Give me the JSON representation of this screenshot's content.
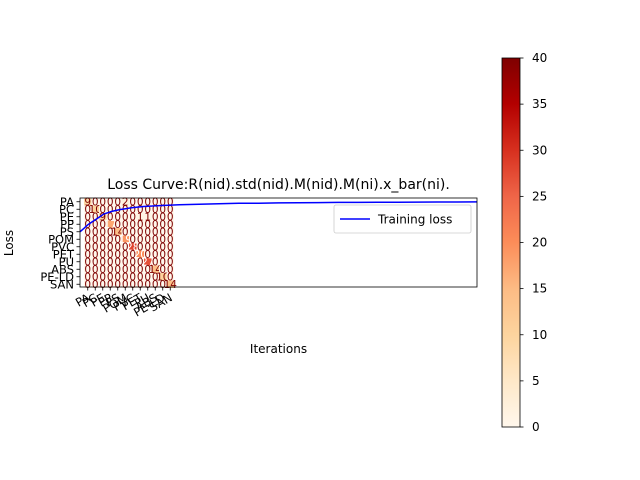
{
  "chart_data": [
    {
      "type": "line",
      "title": "Loss Curve:R(nid).std(nid).M(nid).M(ni).x_bar(ni).",
      "xlabel": "Iterations",
      "ylabel": "Loss",
      "grid": false,
      "legend_placement": "upper right",
      "series": [
        {
          "name": "Training loss",
          "color": "#0000ff",
          "x": [
            0,
            1,
            2,
            3,
            4,
            5,
            6,
            8,
            10,
            13,
            16,
            20,
            25,
            30,
            35,
            40,
            45,
            50,
            55,
            60,
            65,
            70,
            75,
            80,
            85,
            90,
            95,
            100
          ],
          "y": [
            0.62,
            0.66,
            0.7,
            0.73,
            0.76,
            0.79,
            0.82,
            0.85,
            0.87,
            0.89,
            0.905,
            0.915,
            0.925,
            0.93,
            0.935,
            0.94,
            0.942,
            0.945,
            0.947,
            0.948,
            0.95,
            0.951,
            0.952,
            0.953,
            0.954,
            0.955,
            0.955,
            0.956
          ]
        }
      ],
      "xlim": [
        0,
        100
      ],
      "ylim": [
        0,
        1
      ]
    },
    {
      "type": "heatmap",
      "colormap": "OrRd",
      "categories": [
        "PA",
        "PC",
        "PE",
        "PP",
        "PS",
        "POM",
        "PVC",
        "PET",
        "PU",
        "ABS",
        "PE-LD",
        "SAN"
      ],
      "matrix": [
        [
          9,
          0,
          0,
          0,
          0,
          2,
          0,
          0,
          0,
          0,
          0,
          0
        ],
        [
          0,
          10,
          0,
          0,
          0,
          0,
          0,
          0,
          0,
          0,
          0,
          0
        ],
        [
          0,
          0,
          9,
          0,
          0,
          0,
          0,
          1,
          1,
          0,
          0,
          0
        ],
        [
          0,
          0,
          0,
          17,
          0,
          0,
          0,
          0,
          0,
          0,
          0,
          0
        ],
        [
          0,
          0,
          0,
          0,
          14,
          0,
          0,
          0,
          0,
          0,
          0,
          0
        ],
        [
          0,
          0,
          0,
          0,
          0,
          19,
          0,
          0,
          0,
          0,
          0,
          0
        ],
        [
          0,
          0,
          0,
          0,
          0,
          0,
          28,
          0,
          0,
          0,
          0,
          0
        ],
        [
          0,
          0,
          0,
          0,
          0,
          0,
          0,
          20,
          0,
          0,
          0,
          0
        ],
        [
          0,
          0,
          0,
          0,
          0,
          0,
          0,
          0,
          27,
          0,
          0,
          0
        ],
        [
          0,
          0,
          0,
          0,
          0,
          0,
          0,
          0,
          0,
          14,
          0,
          0
        ],
        [
          0,
          0,
          0,
          0,
          0,
          0,
          0,
          0,
          0,
          0,
          10,
          0
        ],
        [
          0,
          0,
          0,
          0,
          0,
          0,
          0,
          0,
          0,
          0,
          0,
          14
        ]
      ],
      "colorbar": {
        "range": [
          0,
          40
        ],
        "ticks": [
          0,
          5,
          10,
          15,
          20,
          25,
          30,
          35,
          40
        ]
      }
    }
  ]
}
